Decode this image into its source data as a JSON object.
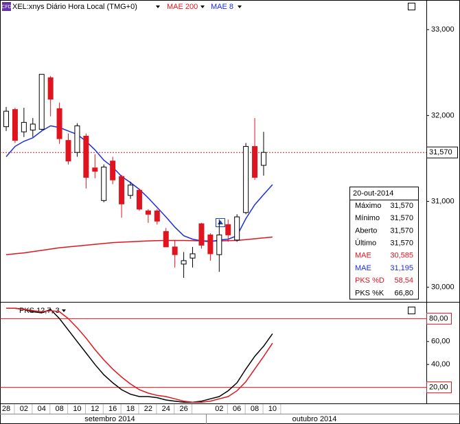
{
  "chart_data": [
    {
      "type": "candlestick",
      "title": "XEL:xnys Diário Hora Local (TMG+0)",
      "icon": "CFD",
      "categories": [
        "28",
        null,
        "02",
        null,
        "04",
        null,
        "08",
        null,
        "10",
        null,
        "12",
        null,
        "16",
        null,
        "18",
        null,
        "22",
        null,
        "24",
        null,
        "26",
        null,
        null,
        null,
        "02",
        null,
        "06",
        null,
        "08",
        null,
        "10"
      ],
      "months": [
        "setembro 2014",
        "outubro 2014"
      ],
      "open": [
        31870,
        32070,
        31810,
        31830,
        31840,
        32440,
        32080,
        31710,
        31570,
        31760,
        31390,
        31010,
        31470,
        31290,
        31070,
        31130,
        30890,
        30890,
        30650,
        30470,
        30270,
        30340,
        30740,
        30610,
        30380,
        30730,
        30550,
        30870,
        31640,
        31420,
        null
      ],
      "high": [
        32100,
        32090,
        32090,
        31970,
        32480,
        32460,
        32150,
        31790,
        31910,
        31790,
        31550,
        31430,
        31520,
        31310,
        31230,
        31150,
        30910,
        30910,
        30690,
        30550,
        30410,
        30470,
        30750,
        30630,
        30790,
        30790,
        30850,
        31680,
        31970,
        31810,
        null
      ],
      "low": [
        31820,
        31680,
        31750,
        31750,
        31830,
        31990,
        31670,
        31430,
        31520,
        31150,
        31270,
        30990,
        31200,
        30810,
        31030,
        30890,
        30750,
        30730,
        30470,
        30230,
        30110,
        30230,
        30450,
        30310,
        30180,
        30530,
        30530,
        30850,
        31250,
        31300,
        null
      ],
      "close": [
        32050,
        31710,
        31920,
        31900,
        32480,
        32190,
        31730,
        31470,
        31880,
        31280,
        31350,
        31400,
        31250,
        30970,
        31190,
        30910,
        30850,
        30770,
        30470,
        30380,
        30310,
        30390,
        30490,
        30390,
        30610,
        30610,
        30820,
        31640,
        31280,
        31570,
        null
      ],
      "up_color": "#ffffff",
      "down_color": "#e0141e",
      "series": [
        {
          "name": "MAE 200",
          "color": "#e0141e",
          "values": [
            30380,
            30390,
            30400,
            30415,
            30430,
            30445,
            30460,
            30470,
            30480,
            30490,
            30500,
            30510,
            30520,
            30525,
            30530,
            30535,
            30540,
            30543,
            30545,
            30545,
            30545,
            30543,
            30540,
            30540,
            30540,
            30543,
            30545,
            30555,
            30565,
            30575,
            30585
          ]
        },
        {
          "name": "MAE 8",
          "color": "#1a2ee0",
          "values": [
            31520,
            31640,
            31700,
            31740,
            31820,
            31880,
            31860,
            31820,
            31780,
            31700,
            31600,
            31480,
            31400,
            31290,
            31220,
            31140,
            31040,
            30930,
            30820,
            30700,
            30600,
            30560,
            30540,
            30530,
            30550,
            30560,
            30600,
            30800,
            30960,
            31080,
            31195
          ]
        }
      ],
      "last_price": {
        "value": 31570,
        "label": "31,570"
      },
      "ylim": [
        29830,
        33345
      ],
      "yticks": [
        {
          "value": 30000,
          "label": "30,000"
        },
        {
          "value": 31000,
          "label": "31,000"
        },
        {
          "value": 32000,
          "label": "32,000"
        },
        {
          "value": 33000,
          "label": "33,000"
        }
      ],
      "info_box": {
        "date": "20-out-2014",
        "rows": [
          {
            "label": "Máximo",
            "value": "31,570",
            "color": "#000000"
          },
          {
            "label": "Mínimo",
            "value": "31,570",
            "color": "#000000"
          },
          {
            "label": "Aberto",
            "value": "31,570",
            "color": "#000000"
          },
          {
            "label": "Último",
            "value": "31,570",
            "color": "#000000"
          },
          {
            "label": "MAE",
            "value": "30,585",
            "color": "#e0141e"
          },
          {
            "label": "MAE",
            "value": "31,195",
            "color": "#1a2ee0"
          },
          {
            "label": "PKS %D",
            "value": "58,54",
            "color": "#e0141e"
          },
          {
            "label": "PKS %K",
            "value": "66,80",
            "color": "#000000"
          }
        ]
      }
    },
    {
      "type": "line",
      "title": "PKS 12,7, 3",
      "series": [
        {
          "color": "#000000",
          "values": [
            89,
            89,
            88,
            86,
            85,
            88,
            80,
            70,
            60,
            50,
            40,
            31,
            24,
            18,
            14,
            12,
            12,
            11,
            9,
            8,
            7,
            7,
            8,
            10,
            12,
            17,
            24,
            36,
            47,
            56,
            66.8
          ]
        },
        {
          "color": "#e0141e",
          "values": [
            89,
            89,
            88,
            87,
            86,
            87,
            86,
            80,
            72,
            63,
            53,
            44,
            36,
            29,
            23,
            18,
            15,
            13,
            12,
            10,
            8,
            7,
            7,
            8,
            10,
            12,
            17,
            25,
            36,
            47,
            58.54
          ]
        }
      ],
      "levels": [
        {
          "value": 80,
          "label": "80,00"
        },
        {
          "value": 20,
          "label": "20,00"
        }
      ],
      "level_color": "#e0141e",
      "ylim": [
        6,
        91
      ],
      "yticks": [
        {
          "value": 60,
          "label": "60,00"
        },
        {
          "value": 40,
          "label": "40,00"
        }
      ]
    }
  ]
}
